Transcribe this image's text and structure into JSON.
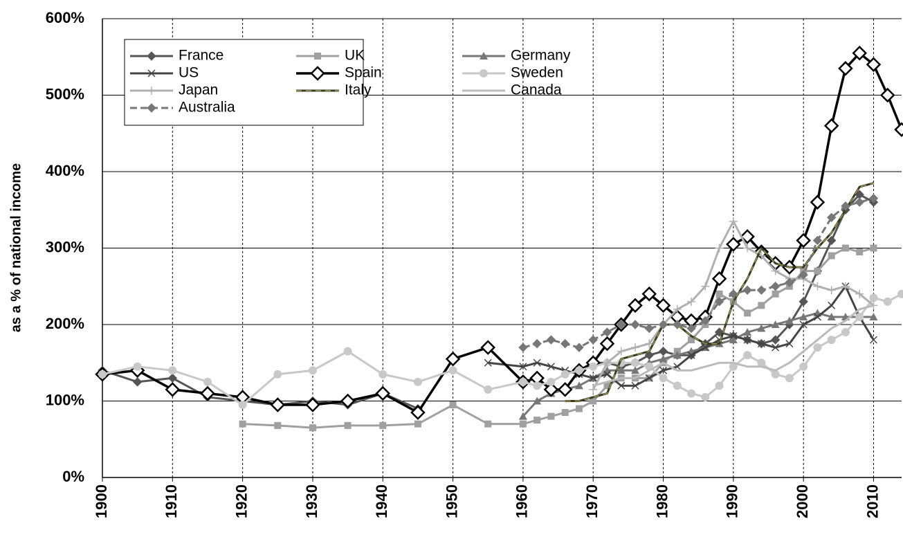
{
  "chart_data": {
    "type": "line",
    "y_axis_label": "as a % of national income",
    "xlim": [
      1900,
      2014
    ],
    "ylim": [
      0,
      600
    ],
    "xticks": [
      1900,
      1910,
      1920,
      1930,
      1940,
      1950,
      1960,
      1970,
      1980,
      1990,
      2000,
      2010
    ],
    "yticks": [
      {
        "value": 0,
        "label": "0%"
      },
      {
        "value": 100,
        "label": "100%"
      },
      {
        "value": 200,
        "label": "200%"
      },
      {
        "value": 300,
        "label": "300%"
      },
      {
        "value": 400,
        "label": "400%"
      },
      {
        "value": 500,
        "label": "500%"
      },
      {
        "value": 600,
        "label": "600%"
      }
    ],
    "grid": true,
    "legend": "top-left",
    "x": [
      1900,
      1905,
      1910,
      1915,
      1920,
      1925,
      1930,
      1935,
      1940,
      1945,
      1950,
      1955,
      1960,
      1962,
      1964,
      1966,
      1968,
      1970,
      1972,
      1974,
      1976,
      1978,
      1980,
      1982,
      1984,
      1986,
      1988,
      1990,
      1992,
      1994,
      1996,
      1998,
      2000,
      2002,
      2004,
      2006,
      2008,
      2010,
      2012,
      2014
    ],
    "series": [
      {
        "name": "France",
        "color": "#555555",
        "marker": "diamond",
        "values": [
          140,
          125,
          130,
          105,
          100,
          95,
          100,
          95,
          110,
          90,
          null,
          null,
          null,
          null,
          null,
          null,
          null,
          150,
          150,
          145,
          150,
          160,
          165,
          160,
          160,
          175,
          190,
          185,
          180,
          175,
          180,
          200,
          230,
          270,
          310,
          350,
          370,
          360,
          null,
          null
        ]
      },
      {
        "name": "UK",
        "color": "#a0a0a0",
        "marker": "square",
        "values": [
          null,
          null,
          null,
          null,
          70,
          68,
          65,
          68,
          68,
          70,
          95,
          70,
          70,
          75,
          80,
          85,
          90,
          100,
          120,
          130,
          130,
          130,
          150,
          165,
          180,
          200,
          240,
          230,
          215,
          225,
          240,
          250,
          270,
          270,
          290,
          300,
          295,
          300,
          null,
          null
        ]
      },
      {
        "name": "Germany",
        "color": "#777777",
        "marker": "triangle",
        "values": [
          null,
          null,
          null,
          null,
          null,
          null,
          null,
          null,
          null,
          null,
          null,
          null,
          80,
          100,
          110,
          115,
          120,
          130,
          140,
          140,
          140,
          150,
          155,
          160,
          165,
          170,
          175,
          180,
          190,
          195,
          200,
          205,
          210,
          215,
          210,
          210,
          210,
          210,
          null,
          null
        ]
      },
      {
        "name": "US",
        "color": "#444444",
        "marker": "x",
        "values": [
          null,
          null,
          null,
          null,
          null,
          null,
          null,
          null,
          null,
          null,
          null,
          150,
          145,
          150,
          145,
          140,
          135,
          130,
          135,
          120,
          120,
          130,
          140,
          145,
          160,
          170,
          180,
          185,
          180,
          175,
          170,
          175,
          200,
          210,
          225,
          250,
          210,
          180,
          null,
          null
        ]
      },
      {
        "name": "Spain",
        "color": "#000000",
        "marker": "open-diamond",
        "values": [
          135,
          140,
          115,
          110,
          105,
          95,
          95,
          100,
          110,
          85,
          155,
          170,
          125,
          130,
          115,
          115,
          140,
          150,
          175,
          200,
          225,
          240,
          225,
          210,
          205,
          210,
          260,
          305,
          315,
          295,
          280,
          275,
          310,
          360,
          460,
          535,
          555,
          540,
          500,
          455
        ]
      },
      {
        "name": "Sweden",
        "color": "#c8c8c8",
        "marker": "circle",
        "values": [
          135,
          145,
          140,
          125,
          95,
          135,
          140,
          165,
          135,
          125,
          140,
          115,
          125,
          120,
          125,
          135,
          140,
          145,
          150,
          150,
          150,
          145,
          130,
          120,
          110,
          105,
          120,
          145,
          160,
          150,
          135,
          130,
          145,
          170,
          180,
          190,
          210,
          235,
          230,
          240
        ]
      },
      {
        "name": "Japan",
        "color": "#b0b0b0",
        "marker": "plus",
        "values": [
          null,
          null,
          null,
          null,
          null,
          null,
          null,
          null,
          null,
          null,
          null,
          null,
          null,
          null,
          null,
          null,
          null,
          115,
          150,
          165,
          170,
          175,
          200,
          220,
          230,
          250,
          300,
          335,
          300,
          290,
          270,
          260,
          260,
          250,
          245,
          250,
          240,
          225,
          null,
          null
        ]
      },
      {
        "name": "Italy",
        "color": "#3a3a22",
        "marker": "dash",
        "values": [
          null,
          null,
          null,
          null,
          null,
          null,
          null,
          null,
          null,
          null,
          null,
          null,
          null,
          null,
          null,
          100,
          100,
          105,
          110,
          155,
          160,
          165,
          200,
          200,
          185,
          175,
          175,
          230,
          260,
          300,
          280,
          275,
          275,
          300,
          320,
          350,
          380,
          385,
          null,
          null
        ]
      },
      {
        "name": "Canada",
        "color": "#bbbbbb",
        "marker": "none",
        "values": [
          null,
          null,
          null,
          null,
          null,
          null,
          null,
          null,
          null,
          null,
          null,
          null,
          null,
          null,
          null,
          null,
          null,
          120,
          125,
          130,
          130,
          140,
          150,
          140,
          140,
          145,
          150,
          150,
          145,
          145,
          140,
          150,
          165,
          180,
          195,
          205,
          220,
          225,
          null,
          null
        ]
      },
      {
        "name": "Australia",
        "color": "#777777",
        "marker": "diamond",
        "dashed": true,
        "values": [
          null,
          null,
          null,
          null,
          null,
          null,
          null,
          null,
          null,
          null,
          null,
          null,
          170,
          175,
          180,
          175,
          170,
          180,
          190,
          200,
          200,
          195,
          200,
          200,
          195,
          205,
          230,
          240,
          245,
          245,
          250,
          255,
          265,
          310,
          340,
          355,
          360,
          365,
          null,
          null
        ]
      }
    ]
  }
}
